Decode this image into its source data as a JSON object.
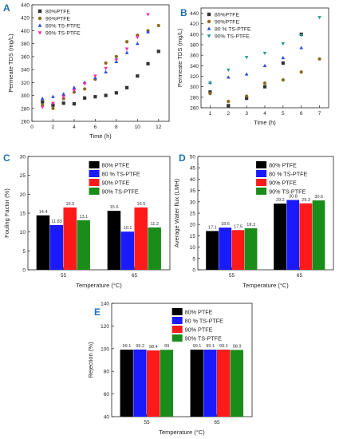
{
  "panel_letters": [
    "A",
    "B",
    "C",
    "D",
    "E"
  ],
  "colors": {
    "black": "#000000",
    "blue": "#1a1aff",
    "red": "#ff1a1a",
    "green": "#1a8c1a",
    "scatter_black": "#333333",
    "scatter_olive": "#8b6b1f",
    "scatter_blue": "#2a4bd7",
    "scatter_pink": "#ff2ea6",
    "scatter_teal": "#2a9d8f"
  },
  "chart_data": [
    {
      "panel": "A",
      "type": "scatter",
      "xlabel": "Time (h)",
      "ylabel": "Permeate TDS (mg/L)",
      "xlim": [
        0,
        13
      ],
      "ylim": [
        260,
        440
      ],
      "xticks": [
        0,
        2,
        4,
        6,
        8,
        10,
        12
      ],
      "yticks": [
        260,
        280,
        300,
        320,
        340,
        360,
        380,
        400,
        420,
        440
      ],
      "legend_position": "top-left",
      "series": [
        {
          "name": "80%PTFE",
          "marker": "square",
          "color": "#333333",
          "x": [
            1,
            2,
            3,
            4,
            5,
            6,
            7,
            8,
            9,
            10,
            11,
            12
          ],
          "y": [
            290,
            285,
            288,
            287,
            296,
            298,
            300,
            304,
            312,
            330,
            349,
            368
          ]
        },
        {
          "name": "90%PTFE",
          "marker": "circle",
          "color": "#8b6b1f",
          "x": [
            1,
            2,
            3,
            4,
            5,
            6,
            7,
            8,
            9,
            10,
            11,
            12
          ],
          "y": [
            285,
            280,
            295,
            305,
            310,
            325,
            350,
            360,
            383,
            393,
            400,
            408
          ]
        },
        {
          "name": "80% TS-PTFE",
          "marker": "triangle-up",
          "color": "#2a4bd7",
          "x": [
            1,
            2,
            3,
            4,
            5,
            6,
            7,
            8,
            9,
            10,
            11
          ],
          "y": [
            295,
            298,
            302,
            312,
            320,
            327,
            336,
            352,
            366,
            380,
            398
          ]
        },
        {
          "name": "90% TS-PTFE",
          "marker": "triangle-down",
          "color": "#ff2ea6",
          "x": [
            1,
            2,
            3,
            4,
            5,
            6,
            7,
            8,
            9,
            10,
            11
          ],
          "y": [
            282,
            288,
            298,
            308,
            318,
            330,
            342,
            355,
            372,
            390,
            425
          ]
        }
      ]
    },
    {
      "panel": "B",
      "type": "scatter",
      "xlabel": "Time (h)",
      "ylabel": "Permeate TDS (mg/L)",
      "xlim": [
        0.5,
        7.5
      ],
      "ylim": [
        260,
        450
      ],
      "xticks": [
        1,
        2,
        3,
        4,
        5,
        6,
        7
      ],
      "yticks": [
        260,
        280,
        300,
        320,
        340,
        360,
        380,
        400,
        420,
        440
      ],
      "legend_position": "top-left",
      "series": [
        {
          "name": "80%PTFE",
          "marker": "square",
          "color": "#333333",
          "x": [
            1,
            2,
            3,
            4,
            5,
            6
          ],
          "y": [
            290,
            264,
            278,
            300,
            345,
            400
          ]
        },
        {
          "name": "90%PTFE",
          "marker": "circle",
          "color": "#8b6b1f",
          "x": [
            1,
            2,
            3,
            4,
            5,
            6,
            7
          ],
          "y": [
            287,
            272,
            282,
            307,
            313,
            328,
            353
          ]
        },
        {
          "name": "80 % TS-PTFE",
          "marker": "triangle-up",
          "color": "#2a4bd7",
          "x": [
            1,
            2,
            3,
            4,
            5,
            6
          ],
          "y": [
            308,
            318,
            324,
            340,
            355,
            374
          ]
        },
        {
          "name": "90% TS-PTFE",
          "marker": "triangle-down",
          "color": "#2a9d8f",
          "x": [
            1,
            2,
            3,
            4,
            5,
            6,
            7
          ],
          "y": [
            307,
            332,
            356,
            364,
            382,
            398,
            432
          ]
        }
      ]
    },
    {
      "panel": "C",
      "type": "bar",
      "xlabel": "Temperature (°C)",
      "ylabel": "Fouling Factor (%)",
      "ylim": [
        0,
        30
      ],
      "yticks": [
        0,
        5,
        10,
        15,
        20,
        25,
        30
      ],
      "categories": [
        "55",
        "65"
      ],
      "legend_position": "top-right",
      "series": [
        {
          "name": "80% PTFE",
          "color": "#000000",
          "values": [
            14.4,
            15.6
          ],
          "labels": [
            "14.4",
            "15.6"
          ]
        },
        {
          "name": "80 % TS-PTFE",
          "color": "#1a1aff",
          "values": [
            11.83,
            10.1
          ],
          "labels": [
            "11.83",
            "10.1"
          ]
        },
        {
          "name": "90% PTFE",
          "color": "#ff1a1a",
          "values": [
            16.5,
            16.5
          ],
          "labels": [
            "16.5",
            "16.5"
          ]
        },
        {
          "name": "90% TS-PTFE",
          "color": "#1a8c1a",
          "values": [
            13.1,
            11.2
          ],
          "labels": [
            "13.1",
            "11.2"
          ]
        }
      ]
    },
    {
      "panel": "D",
      "type": "bar",
      "xlabel": "Temperature (°C)",
      "ylabel": "Average Water flux (LMH)",
      "ylim": [
        0,
        50
      ],
      "yticks": [
        0,
        5,
        10,
        15,
        20,
        25,
        30,
        35,
        40,
        45,
        50
      ],
      "categories": [
        "55",
        "65"
      ],
      "legend_position": "top-right",
      "series": [
        {
          "name": "80% PTFE",
          "color": "#000000",
          "values": [
            17.1,
            29.2
          ],
          "labels": [
            "17.1",
            "29.2"
          ]
        },
        {
          "name": "80 % TS-PTFE",
          "color": "#1a1aff",
          "values": [
            18.6,
            30.8
          ],
          "labels": [
            "18.6",
            "30.8"
          ]
        },
        {
          "name": "90% PTFE",
          "color": "#ff1a1a",
          "values": [
            17.5,
            29.3
          ],
          "labels": [
            "17.5",
            "29.3"
          ]
        },
        {
          "name": "90% TS-PTFE",
          "color": "#1a8c1a",
          "values": [
            18.3,
            30.6
          ],
          "labels": [
            "18.3",
            "30.6"
          ]
        }
      ]
    },
    {
      "panel": "E",
      "type": "bar",
      "xlabel": "Temperature (°C)",
      "ylabel": "Rejection (%)",
      "ylim": [
        40,
        140
      ],
      "yticks": [
        40,
        60,
        80,
        100,
        120,
        140
      ],
      "categories": [
        "55",
        "65"
      ],
      "legend_position": "top-right",
      "series": [
        {
          "name": "80% PTFE",
          "color": "#000000",
          "values": [
            99.1,
            99.1
          ],
          "labels": [
            "99.1",
            "99.1"
          ]
        },
        {
          "name": "80 % TS-PTFE",
          "color": "#1a1aff",
          "values": [
            99.2,
            99.1
          ],
          "labels": [
            "99.2",
            "99.1"
          ]
        },
        {
          "name": "90% PTFE",
          "color": "#ff1a1a",
          "values": [
            98.4,
            99.1
          ],
          "labels": [
            "98.4",
            "99.1"
          ]
        },
        {
          "name": "90% TS-PTFE",
          "color": "#1a8c1a",
          "values": [
            99,
            98.9
          ],
          "labels": [
            "99",
            "98.9"
          ]
        }
      ]
    }
  ]
}
